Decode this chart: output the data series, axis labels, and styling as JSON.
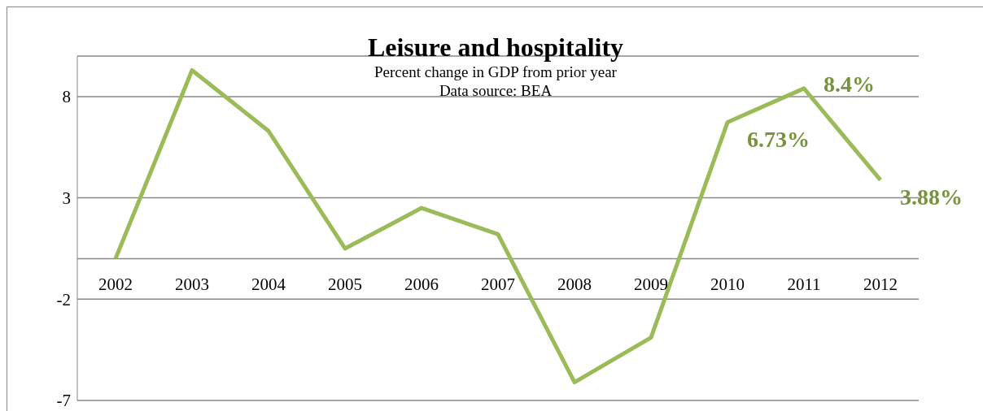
{
  "chart_data": {
    "type": "line",
    "title": "Leisure and hospitality",
    "subtitle": "Percent change in GDP from prior year",
    "annotations": [
      "Data source: BEA"
    ],
    "categories": [
      "2002",
      "2003",
      "2004",
      "2005",
      "2006",
      "2007",
      "2008",
      "2009",
      "2010",
      "2011",
      "2012"
    ],
    "series": [
      {
        "color": "#9bbb59",
        "values": [
          0,
          9.3,
          6.3,
          0.5,
          2.5,
          1.2,
          -6.1,
          -3.9,
          6.73,
          8.4,
          3.88
        ],
        "value_labels": [
          null,
          null,
          null,
          null,
          null,
          null,
          null,
          null,
          "6.73%",
          "8.4%",
          "3.88%"
        ]
      }
    ],
    "ylim": [
      -7,
      10
    ],
    "yticks": [
      8,
      3,
      -2,
      -7
    ],
    "grid": "y",
    "legend": false,
    "marker": "none",
    "line_style": "solid"
  }
}
